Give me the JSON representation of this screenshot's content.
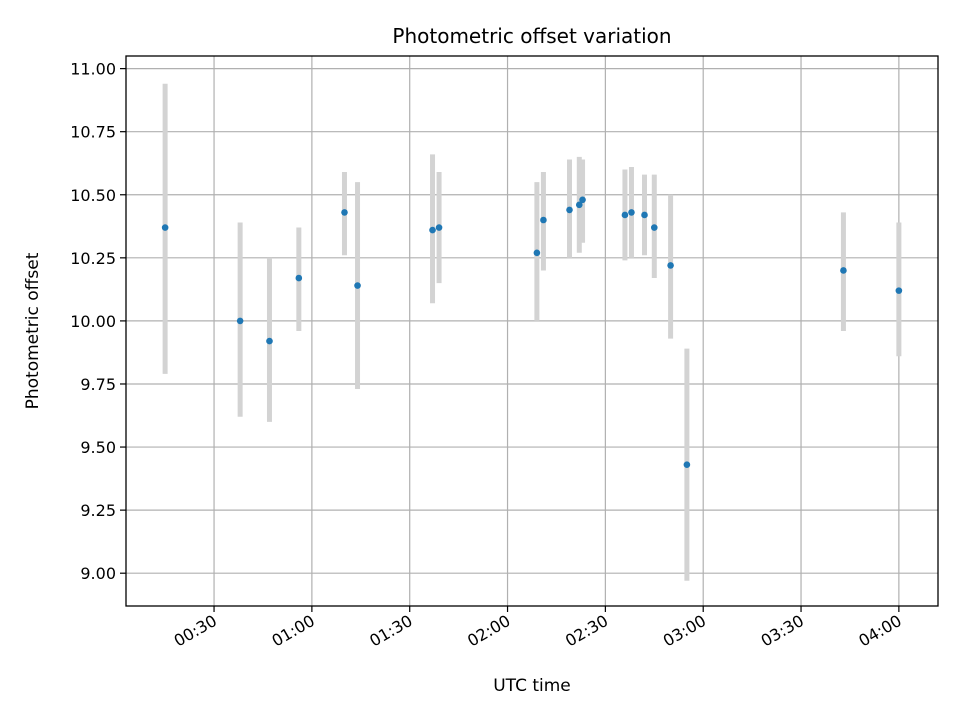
{
  "chart_data": {
    "type": "scatter",
    "title": "Photometric offset variation",
    "xlabel": "UTC time",
    "ylabel": "Photometric offset",
    "xlim": [
      "00:03",
      "04:12"
    ],
    "ylim": [
      8.87,
      11.05
    ],
    "x_ticks": [
      "00:30",
      "01:00",
      "01:30",
      "02:00",
      "02:30",
      "03:00",
      "03:30",
      "04:00"
    ],
    "y_ticks": [
      "9.00",
      "9.25",
      "9.50",
      "9.75",
      "10.00",
      "10.25",
      "10.50",
      "10.75",
      "11.00"
    ],
    "grid": true,
    "point_color": "#1f77b4",
    "errorbar_color": "#d3d3d3",
    "points": [
      {
        "x": "00:15",
        "y": 10.37,
        "low": 9.79,
        "high": 10.94
      },
      {
        "x": "00:38",
        "y": 10.0,
        "low": 9.62,
        "high": 10.39
      },
      {
        "x": "00:47",
        "y": 9.92,
        "low": 9.6,
        "high": 10.25
      },
      {
        "x": "00:56",
        "y": 10.17,
        "low": 9.96,
        "high": 10.37
      },
      {
        "x": "01:10",
        "y": 10.43,
        "low": 10.26,
        "high": 10.59
      },
      {
        "x": "01:14",
        "y": 10.14,
        "low": 9.73,
        "high": 10.55
      },
      {
        "x": "01:37",
        "y": 10.36,
        "low": 10.07,
        "high": 10.66
      },
      {
        "x": "01:39",
        "y": 10.37,
        "low": 10.15,
        "high": 10.59
      },
      {
        "x": "02:09",
        "y": 10.27,
        "low": 10.0,
        "high": 10.55
      },
      {
        "x": "02:11",
        "y": 10.4,
        "low": 10.2,
        "high": 10.59
      },
      {
        "x": "02:19",
        "y": 10.44,
        "low": 10.25,
        "high": 10.64
      },
      {
        "x": "02:22",
        "y": 10.46,
        "low": 10.27,
        "high": 10.65
      },
      {
        "x": "02:23",
        "y": 10.48,
        "low": 10.31,
        "high": 10.64
      },
      {
        "x": "02:36",
        "y": 10.42,
        "low": 10.24,
        "high": 10.6
      },
      {
        "x": "02:38",
        "y": 10.43,
        "low": 10.25,
        "high": 10.61
      },
      {
        "x": "02:42",
        "y": 10.42,
        "low": 10.26,
        "high": 10.58
      },
      {
        "x": "02:45",
        "y": 10.37,
        "low": 10.17,
        "high": 10.58
      },
      {
        "x": "02:50",
        "y": 10.22,
        "low": 9.93,
        "high": 10.5
      },
      {
        "x": "02:55",
        "y": 9.43,
        "low": 8.97,
        "high": 9.89
      },
      {
        "x": "03:43",
        "y": 10.2,
        "low": 9.96,
        "high": 10.43
      },
      {
        "x": "04:00",
        "y": 10.12,
        "low": 9.86,
        "high": 10.39
      }
    ]
  }
}
